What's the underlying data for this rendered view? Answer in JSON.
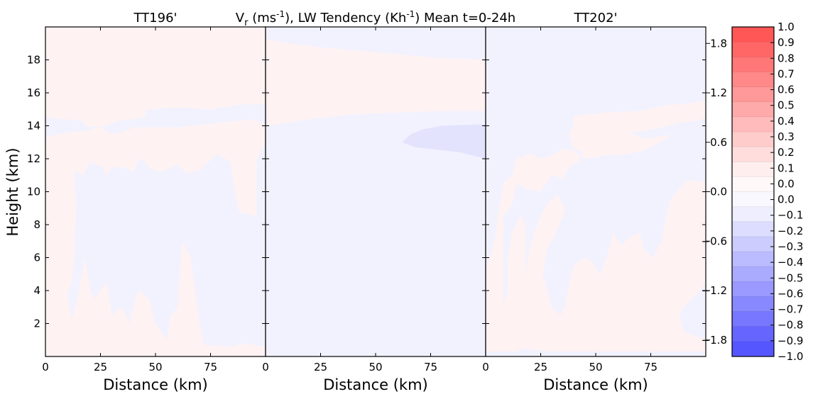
{
  "chart_data": {
    "type": "heatmap",
    "title_main": "V_r (ms^-1), LW Tendency (Kh^-1) Mean t=0-24h",
    "title_parts": {
      "v": "V",
      "sub": "r",
      "units_open": " (ms",
      "exp1": "-1",
      "mid": "), LW Tendency (Kh",
      "exp2": "-1",
      "tail": ") Mean t=0-24h"
    },
    "ylabel": "Height (km)",
    "xlabel": "Distance (km)",
    "xlim": [
      0,
      100
    ],
    "ylim": [
      0,
      20
    ],
    "xticks": [
      "0",
      "25",
      "50",
      "75"
    ],
    "xtick_values": [
      0,
      25,
      50,
      75
    ],
    "yticks": [
      "2",
      "4",
      "6",
      "8",
      "10",
      "12",
      "14",
      "16",
      "18"
    ],
    "ytick_values": [
      2,
      4,
      6,
      8,
      10,
      12,
      14,
      16,
      18
    ],
    "panels": [
      {
        "title": "TT196'",
        "background": "#fef2f2",
        "regions": [
          {
            "color": "#f2f2fe",
            "points": [
              [
                0,
                14.5
              ],
              [
                17,
                14.3
              ],
              [
                18,
                14.0
              ],
              [
                25,
                13.9
              ],
              [
                33,
                14.3
              ],
              [
                45,
                14.5
              ],
              [
                46,
                15.0
              ],
              [
                60,
                15.1
              ],
              [
                75,
                15.0
              ],
              [
                90,
                15.3
              ],
              [
                100,
                15.3
              ],
              [
                100,
                0.6
              ],
              [
                90,
                0.8
              ],
              [
                85,
                0.6
              ],
              [
                72,
                0.7
              ],
              [
                70,
                2.0
              ],
              [
                68,
                4.0
              ],
              [
                66,
                6.0
              ],
              [
                62,
                7.0
              ],
              [
                60,
                3.0
              ],
              [
                57,
                2.5
              ],
              [
                55,
                1.0
              ],
              [
                50,
                2.0
              ],
              [
                47,
                3.5
              ],
              [
                42,
                4.0
              ],
              [
                38,
                2.0
              ],
              [
                35,
                3.0
              ],
              [
                30,
                2.5
              ],
              [
                28,
                4.5
              ],
              [
                22,
                3.5
              ],
              [
                20,
                4.2
              ],
              [
                18,
                6.0
              ],
              [
                14,
                3.2
              ],
              [
                12,
                2.3
              ],
              [
                10,
                3.8
              ],
              [
                12,
                4.5
              ],
              [
                13,
                6.0
              ],
              [
                14,
                9.0
              ],
              [
                13,
                11.3
              ],
              [
                17,
                11.0
              ],
              [
                20,
                11.8
              ],
              [
                26,
                11.5
              ],
              [
                28,
                11.0
              ],
              [
                30,
                11.5
              ],
              [
                35,
                11.5
              ],
              [
                40,
                11.2
              ],
              [
                42,
                11.9
              ],
              [
                44,
                12.0
              ],
              [
                48,
                11.4
              ],
              [
                52,
                11.2
              ],
              [
                56,
                11.4
              ],
              [
                60,
                11.7
              ],
              [
                64,
                11.1
              ],
              [
                70,
                11.3
              ],
              [
                74,
                11.8
              ],
              [
                78,
                12.3
              ],
              [
                84,
                11.8
              ],
              [
                86,
                10.0
              ],
              [
                88,
                8.8
              ],
              [
                96,
                8.5
              ],
              [
                96,
                12.0
              ],
              [
                100,
                13.0
              ],
              [
                100,
                14.0
              ],
              [
                95,
                14.4
              ],
              [
                80,
                14.2
              ],
              [
                60,
                13.9
              ],
              [
                40,
                13.9
              ],
              [
                33,
                13.5
              ],
              [
                28,
                13.6
              ],
              [
                25,
                14.0
              ],
              [
                20,
                13.7
              ],
              [
                10,
                13.6
              ],
              [
                0,
                13.3
              ]
            ]
          }
        ]
      },
      {
        "title": "",
        "background": "#f2f2fe",
        "regions": [
          {
            "color": "#fef2f2",
            "points": [
              [
                0,
                19.3
              ],
              [
                10,
                19.0
              ],
              [
                30,
                18.7
              ],
              [
                55,
                18.4
              ],
              [
                80,
                18.1
              ],
              [
                100,
                18.0
              ],
              [
                100,
                14.9
              ],
              [
                80,
                14.9
              ],
              [
                60,
                14.8
              ],
              [
                40,
                14.7
              ],
              [
                20,
                14.4
              ],
              [
                0,
                14.0
              ]
            ]
          },
          {
            "color": "#e3e3fe",
            "points": [
              [
                62,
                13.0
              ],
              [
                66,
                13.5
              ],
              [
                72,
                13.8
              ],
              [
                80,
                14.0
              ],
              [
                100,
                14.1
              ],
              [
                100,
                12.0
              ],
              [
                88,
                12.4
              ],
              [
                75,
                12.6
              ],
              [
                68,
                12.7
              ]
            ]
          }
        ]
      },
      {
        "title": "TT202'",
        "background": "#f2f2fe",
        "regions": [
          {
            "color": "#fef2f2",
            "points": [
              [
                40,
                14.6
              ],
              [
                55,
                14.8
              ],
              [
                70,
                14.9
              ],
              [
                80,
                15.2
              ],
              [
                100,
                15.5
              ],
              [
                100,
                13.8
              ],
              [
                88,
                13.8
              ],
              [
                82,
                13.2
              ],
              [
                72,
                12.5
              ],
              [
                65,
                12.3
              ],
              [
                55,
                12.2
              ],
              [
                45,
                12.0
              ],
              [
                40,
                12.5
              ],
              [
                35,
                12.6
              ],
              [
                30,
                12.2
              ],
              [
                25,
                12.0
              ],
              [
                20,
                12.3
              ],
              [
                14,
                12.0
              ],
              [
                12,
                11.0
              ],
              [
                8,
                10.5
              ],
              [
                6,
                9.0
              ],
              [
                4,
                7.0
              ],
              [
                2,
                6.0
              ],
              [
                0,
                5.5
              ],
              [
                0,
                0.3
              ],
              [
                15,
                0.3
              ],
              [
                15,
                0.5
              ],
              [
                30,
                0.3
              ],
              [
                50,
                0.3
              ],
              [
                100,
                0.3
              ],
              [
                100,
                1.0
              ],
              [
                90,
                1.5
              ],
              [
                88,
                2.5
              ],
              [
                90,
                3.0
              ],
              [
                96,
                3.8
              ],
              [
                100,
                4.5
              ],
              [
                100,
                10.6
              ],
              [
                92,
                10.7
              ],
              [
                88,
                10.2
              ],
              [
                84,
                9.5
              ],
              [
                82,
                8.5
              ],
              [
                80,
                7.0
              ],
              [
                76,
                6.0
              ],
              [
                72,
                6.5
              ],
              [
                70,
                7.5
              ],
              [
                66,
                7.3
              ],
              [
                62,
                6.8
              ],
              [
                60,
                7.0
              ],
              [
                58,
                7.5
              ],
              [
                55,
                6.0
              ],
              [
                52,
                5.0
              ],
              [
                48,
                5.8
              ],
              [
                44,
                6.0
              ],
              [
                40,
                5.5
              ],
              [
                38,
                4.5
              ],
              [
                36,
                3.0
              ],
              [
                34,
                2.5
              ],
              [
                30,
                3.0
              ],
              [
                28,
                4.0
              ],
              [
                26,
                5.0
              ],
              [
                28,
                6.5
              ],
              [
                32,
                7.5
              ],
              [
                35,
                8.5
              ],
              [
                36,
                9.0
              ],
              [
                33,
                9.8
              ],
              [
                30,
                9.5
              ],
              [
                28,
                9.3
              ],
              [
                24,
                8.2
              ],
              [
                22,
                7.5
              ],
              [
                20,
                6.5
              ],
              [
                18,
                5.0
              ],
              [
                18,
                8.0
              ],
              [
                16,
                8.6
              ],
              [
                12,
                7.5
              ],
              [
                10,
                6.0
              ],
              [
                10,
                4.0
              ],
              [
                8,
                3.2
              ],
              [
                8,
                8.5
              ],
              [
                12,
                9.2
              ],
              [
                14,
                10.5
              ],
              [
                18,
                10.2
              ],
              [
                25,
                10.0
              ],
              [
                30,
                11.0
              ],
              [
                35,
                10.8
              ],
              [
                38,
                11.5
              ],
              [
                42,
                11.8
              ],
              [
                44,
                12.4
              ],
              [
                40,
                12.6
              ],
              [
                38,
                13.5
              ],
              [
                40,
                14.0
              ]
            ]
          },
          {
            "color": "#f2f2fe",
            "points": [
              [
                55,
                7.8
              ],
              [
                58,
                8.4
              ],
              [
                62,
                8.6
              ],
              [
                66,
                8.8
              ],
              [
                70,
                9.0
              ],
              [
                74,
                9.4
              ],
              [
                78,
                9.6
              ],
              [
                82,
                10.0
              ],
              [
                84,
                10.6
              ],
              [
                80,
                11.0
              ],
              [
                75,
                10.4
              ],
              [
                70,
                10.2
              ],
              [
                66,
                10.0
              ],
              [
                62,
                10.4
              ],
              [
                58,
                10.2
              ],
              [
                55,
                9.8
              ],
              [
                52,
                9.0
              ]
            ]
          },
          {
            "color": "#f2f2fe",
            "points": [
              [
                65,
                13.6
              ],
              [
                72,
                13.7
              ],
              [
                80,
                13.9
              ],
              [
                88,
                14.2
              ],
              [
                96,
                14.3
              ],
              [
                100,
                14.5
              ],
              [
                100,
                13.8
              ],
              [
                90,
                13.6
              ],
              [
                82,
                13.4
              ],
              [
                72,
                13.2
              ]
            ]
          }
        ]
      }
    ],
    "colorbar": {
      "left_ticks": [
        "1.8",
        "1.2",
        "0.6",
        "0.0",
        "−0.6",
        "−1.2",
        "−1.8"
      ],
      "left_tick_values": [
        1.8,
        1.2,
        0.6,
        0.0,
        -0.6,
        -1.2,
        -1.8
      ],
      "left_range": [
        -2.0,
        2.0
      ],
      "right_ticks": [
        "1.0",
        "0.9",
        "0.8",
        "0.7",
        "0.6",
        "0.5",
        "0.4",
        "0.3",
        "0.2",
        "0.1",
        "0.0",
        "0.0",
        "−0.1",
        "−0.2",
        "−0.3",
        "−0.4",
        "−0.5",
        "−0.6",
        "−0.7",
        "−0.8",
        "−0.9",
        "−1.0"
      ],
      "bands": [
        "#ff5656",
        "#ff6666",
        "#ff7777",
        "#ff8888",
        "#ff9999",
        "#ffaaaa",
        "#ffbbbb",
        "#ffcccc",
        "#ffdddd",
        "#ffeeee",
        "#fef8f8",
        "#f8f8fe",
        "#eeeeff",
        "#ddddff",
        "#ccccff",
        "#bbbbff",
        "#aaaaff",
        "#9999ff",
        "#8888ff",
        "#7777ff",
        "#6666ff",
        "#5656ff"
      ]
    }
  }
}
